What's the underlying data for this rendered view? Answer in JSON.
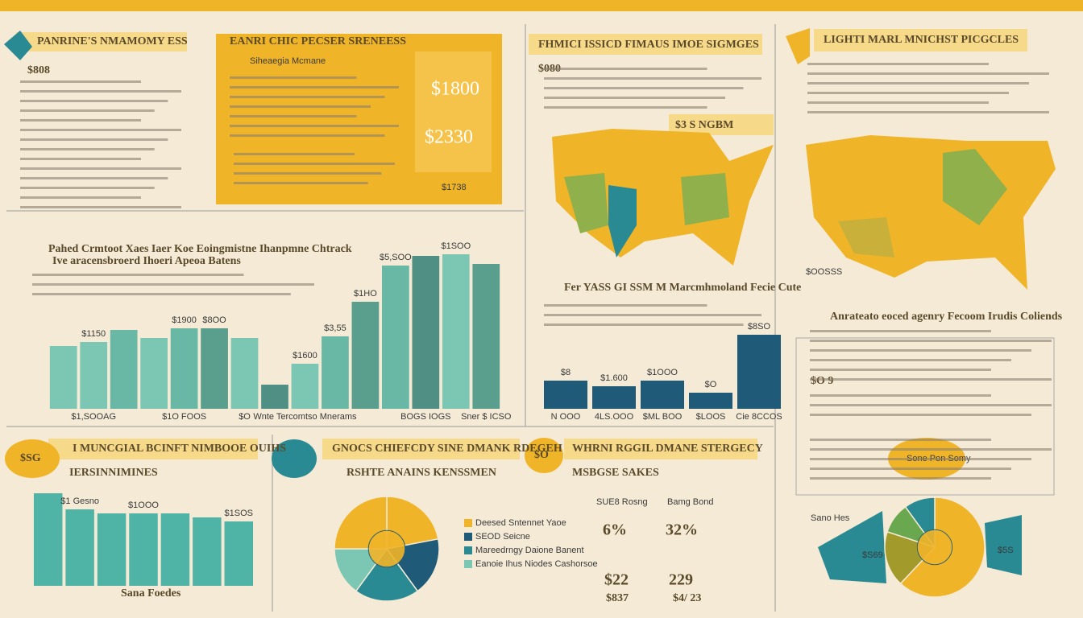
{
  "panels": {
    "left_top": {
      "title": "PANRINE'S NMAMOMY ESS",
      "figure": "$808"
    },
    "card": {
      "title": "EANRI CHIC PECSER SRENEESS",
      "subtitle": "Siheaegia Mcmane",
      "big1": "$1800",
      "big2": "$2330",
      "foot": "$1738"
    },
    "map_left": {
      "title": "FHMICI ISSICD FIMAUS IMOE SIGMGES",
      "figure": "$080",
      "tag": "$3 S NGBM"
    },
    "map_right": {
      "title": "LIGHTI MARL MNICHST PICGCLES",
      "note": "$OOSSS"
    },
    "right_notes": {
      "heading": "Anrateato eoced agenry Fecoom Irudis Coliends",
      "figure": "$O 9",
      "bubble": "Sone Pon Somy"
    },
    "bottom_left": {
      "badge": "$SG",
      "title": "I MUNCGIAL BCINFT NIMBOOE OUIHS",
      "subtitle": "IERSINNIMINES"
    },
    "bottom_mid": {
      "title": "GNOCS CHIEFCDY SINE DMANK RDEGEH",
      "subtitle": "RSHTE ANAINS KENSSMEN",
      "badge": "$O"
    },
    "bottom_stats": {
      "title": "WHRNI RGGIL DMANE STERGECY",
      "subtitle": "MSBGSE SAKES",
      "labels": [
        "SUE8 Rosng",
        "Bamg Bond"
      ],
      "pct": [
        "6%",
        "32%"
      ],
      "mid": [
        "$22",
        "229"
      ],
      "low": [
        "$837",
        "$4/ 23"
      ]
    },
    "bottom_right": {
      "labels": [
        "Sano Hes",
        "$S69",
        "$5S"
      ]
    }
  },
  "chart_data": [
    {
      "type": "bar",
      "title": "Pahed Crmtoot Xaes Iaer Koe Eoingmistne Ihanpmne Chtrack",
      "subtitle": "Ive aracensbroerd Ihoeri Apeoa Batens",
      "categories": [
        null,
        "$1,SOOAG",
        null,
        null,
        "$1O FOOS",
        null,
        "$O",
        null,
        "Wnte Tercomtso Mnerams",
        null,
        null,
        null,
        "BOGS IOGS",
        null,
        "Sner $ ICSO"
      ],
      "values": [
        78,
        83,
        98,
        88,
        100,
        100,
        88,
        30,
        56,
        90,
        133,
        178,
        190,
        192,
        180
      ],
      "colors": [
        "#7cc7b4",
        "#7cc7b4",
        "#68b8a5",
        "#7cc7b4",
        "#68b8a5",
        "#5a9e8e",
        "#7cc7b4",
        "#4f8f84",
        "#7cc7b4",
        "#68b8a5",
        "#5a9e8e",
        "#68b8a5",
        "#4f8f84",
        "#7cc7b4",
        "#5a9e8e"
      ],
      "annotations": [
        "$1150",
        "$1900",
        "$8OO",
        "$1600",
        "$3,55",
        "$1HO",
        "$5,SOO",
        "$1SOO"
      ],
      "ylim": [
        0,
        200
      ]
    },
    {
      "type": "bar",
      "title": "Fer YASS GI SSM M Marcmhmoland Fecie Cute",
      "categories": [
        "N OOO",
        "4LS.OOO",
        "$ML BOO",
        "$LOOS",
        "Cie 8CCOS"
      ],
      "values": [
        35,
        28,
        35,
        20,
        92
      ],
      "color": "#1f5b78",
      "annotations": [
        "$8",
        "$1.600",
        "$1OOO",
        "$O",
        "$8SO"
      ],
      "ylim": [
        0,
        200
      ]
    },
    {
      "type": "bar",
      "title": "Sana Foedes",
      "categories": [
        null,
        null,
        null,
        null,
        null,
        null,
        null
      ],
      "values": [
        115,
        95,
        90,
        90,
        90,
        85,
        80
      ],
      "color": "#4fb3a6",
      "annotations": [
        "$1 Gesno",
        "$1OOO",
        "$1SOS"
      ],
      "ylim": [
        0,
        200
      ]
    },
    {
      "type": "pie",
      "categories": [
        "Deesed Sntennet Yaoe",
        "SEOD Seicne",
        "Mareedrngy Daione Banent",
        "Eanoie Ihus Niodes Cashorsoe",
        null
      ],
      "values": [
        22,
        18,
        20,
        15,
        25
      ],
      "colors": [
        "#f0b429",
        "#1f5b78",
        "#2a8a93",
        "#7cc7b4",
        "#f0b429"
      ]
    },
    {
      "type": "pie",
      "categories": [
        null,
        null,
        null,
        null
      ],
      "values": [
        62,
        18,
        10,
        10
      ],
      "colors": [
        "#f0b429",
        "#a39a2c",
        "#6aa84f",
        "#2a8a93"
      ]
    }
  ]
}
